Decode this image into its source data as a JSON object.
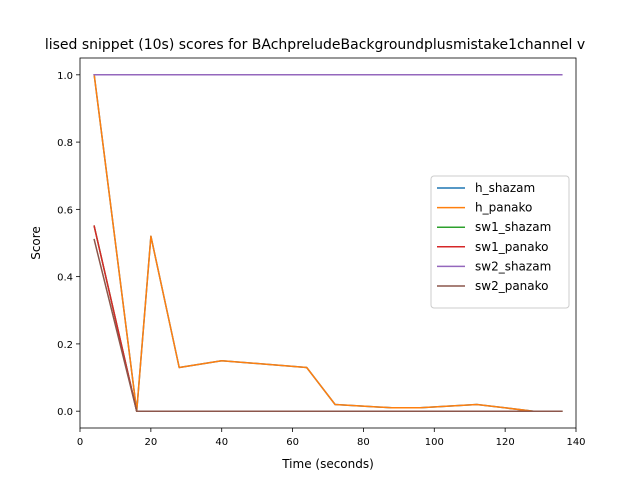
{
  "chart_data": {
    "type": "line",
    "title": "lised snippet (10s) scores for BAchpreludeBackgroundplusmistake1channel v",
    "xlabel": "Time (seconds)",
    "ylabel": "Score",
    "xlim": [
      0,
      140
    ],
    "ylim": [
      -0.05,
      1.05
    ],
    "xticks": [
      0,
      20,
      40,
      60,
      80,
      100,
      120,
      140
    ],
    "xtick_labels": [
      "0",
      "20",
      "40",
      "60",
      "80",
      "100",
      "120",
      "140"
    ],
    "yticks": [
      0.0,
      0.2,
      0.4,
      0.6,
      0.8,
      1.0
    ],
    "ytick_labels": [
      "0.0",
      "0.2",
      "0.4",
      "0.6",
      "0.8",
      "1.0"
    ],
    "grid": false,
    "legend_position": "center-right",
    "series": [
      {
        "name": "h_shazam",
        "color": "#1f77b4",
        "points": [
          [
            4,
            1.0
          ],
          [
            16,
            0.0
          ],
          [
            20,
            0.52
          ],
          [
            28,
            0.13
          ],
          [
            40,
            0.15
          ],
          [
            64,
            0.13
          ],
          [
            72,
            0.02
          ],
          [
            88,
            0.01
          ],
          [
            96,
            0.01
          ],
          [
            112,
            0.02
          ],
          [
            128,
            0.0
          ],
          [
            136,
            0.0
          ]
        ]
      },
      {
        "name": "h_panako",
        "color": "#ff7f0e",
        "points": [
          [
            4,
            1.0
          ],
          [
            16,
            0.0
          ],
          [
            20,
            0.52
          ],
          [
            28,
            0.13
          ],
          [
            40,
            0.15
          ],
          [
            64,
            0.13
          ],
          [
            72,
            0.02
          ],
          [
            88,
            0.01
          ],
          [
            96,
            0.01
          ],
          [
            112,
            0.02
          ],
          [
            128,
            0.0
          ],
          [
            136,
            0.0
          ]
        ]
      },
      {
        "name": "sw1_shazam",
        "color": "#2ca02c",
        "points": [
          [
            4,
            0.55
          ],
          [
            16,
            0.0
          ],
          [
            136,
            0.0
          ]
        ]
      },
      {
        "name": "sw1_panako",
        "color": "#d62728",
        "points": [
          [
            4,
            0.55
          ],
          [
            16,
            0.0
          ],
          [
            136,
            0.0
          ]
        ]
      },
      {
        "name": "sw2_shazam",
        "color": "#9467bd",
        "points": [
          [
            4,
            1.0
          ],
          [
            136,
            1.0
          ]
        ]
      },
      {
        "name": "sw2_panako",
        "color": "#8c564b",
        "points": [
          [
            4,
            0.51
          ],
          [
            16,
            0.0
          ],
          [
            136,
            0.0
          ]
        ]
      }
    ]
  }
}
